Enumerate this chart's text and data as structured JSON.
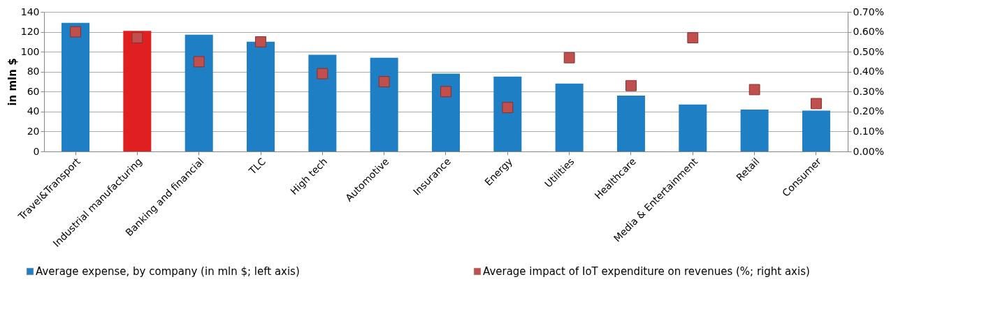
{
  "chart_data": {
    "type": "bar",
    "ylabel": "in mln $",
    "categories": [
      "Travel&Transport",
      "Industrial manufacturing",
      "Banking and financial",
      "TLC",
      "High tech",
      "Automotive",
      "Insurance",
      "Energy",
      "Utilities",
      "Healthcare",
      "Media & Entertainment",
      "Retail",
      "Consumer"
    ],
    "series": [
      {
        "name": "Average expense, by company (in mln $; left axis)",
        "color": "#1f7fc4",
        "colors": [
          "#1f7fc4",
          "#e02020",
          "#1f7fc4",
          "#1f7fc4",
          "#1f7fc4",
          "#1f7fc4",
          "#1f7fc4",
          "#1f7fc4",
          "#1f7fc4",
          "#1f7fc4",
          "#1f7fc4",
          "#1f7fc4",
          "#1f7fc4"
        ],
        "values": [
          129,
          121,
          117,
          110,
          97,
          94,
          78,
          75,
          68,
          56,
          47,
          42,
          41
        ]
      },
      {
        "name": "Average impact of IoT expenditure on revenues (%; right axis)",
        "type": "scatter",
        "axis": "y2",
        "marker": "square",
        "color": "#c0504d",
        "values": [
          0.6,
          0.57,
          0.45,
          0.55,
          0.39,
          0.35,
          0.3,
          0.22,
          0.47,
          0.33,
          0.57,
          0.31,
          0.24
        ]
      }
    ],
    "ylim": [
      0,
      140
    ],
    "yticks": [
      0,
      20,
      40,
      60,
      80,
      100,
      120,
      140
    ],
    "y2lim": [
      0,
      0.7
    ],
    "y2ticks": [
      {
        "value": 0,
        "label": "0.00%"
      },
      {
        "value": 0.1,
        "label": "0.10%"
      },
      {
        "value": 0.2,
        "label": "0.20%"
      },
      {
        "value": 0.3,
        "label": "0.30%"
      },
      {
        "value": 0.4,
        "label": "0.40%"
      },
      {
        "value": 0.5,
        "label": "0.50%"
      },
      {
        "value": 0.6,
        "label": "0.60%"
      },
      {
        "value": 0.7,
        "label": "0.70%"
      }
    ],
    "grid": "y",
    "legend": "bottom"
  }
}
